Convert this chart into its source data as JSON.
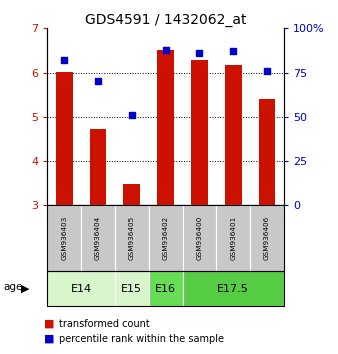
{
  "title": "GDS4591 / 1432062_at",
  "samples": [
    "GSM936403",
    "GSM936404",
    "GSM936405",
    "GSM936402",
    "GSM936400",
    "GSM936401",
    "GSM936406"
  ],
  "transformed_counts": [
    6.02,
    4.73,
    3.49,
    6.52,
    6.28,
    6.18,
    5.4
  ],
  "percentile_ranks": [
    82,
    70,
    51,
    88,
    86,
    87,
    76
  ],
  "age_groups": [
    {
      "label": "E14",
      "samples": [
        "GSM936403",
        "GSM936404"
      ],
      "color": "#d8f5cc"
    },
    {
      "label": "E15",
      "samples": [
        "GSM936405"
      ],
      "color": "#d8f5cc"
    },
    {
      "label": "E16",
      "samples": [
        "GSM936402"
      ],
      "color": "#66dd55"
    },
    {
      "label": "E17.5",
      "samples": [
        "GSM936400",
        "GSM936401",
        "GSM936406"
      ],
      "color": "#55cc44"
    }
  ],
  "ylim_left": [
    3,
    7
  ],
  "ylim_right": [
    0,
    100
  ],
  "yticks_left": [
    3,
    4,
    5,
    6,
    7
  ],
  "yticks_right": [
    0,
    25,
    50,
    75,
    100
  ],
  "ytick_labels_right": [
    "0",
    "25",
    "50",
    "75",
    "100%"
  ],
  "bar_color": "#cc1100",
  "dot_color": "#0000cc",
  "bar_width": 0.5,
  "background_color": "#ffffff",
  "sample_box_color": "#c8c8c8",
  "legend_bar_label": "transformed count",
  "legend_dot_label": "percentile rank within the sample",
  "age_label": "age",
  "figsize": [
    3.38,
    3.54
  ],
  "dpi": 100
}
